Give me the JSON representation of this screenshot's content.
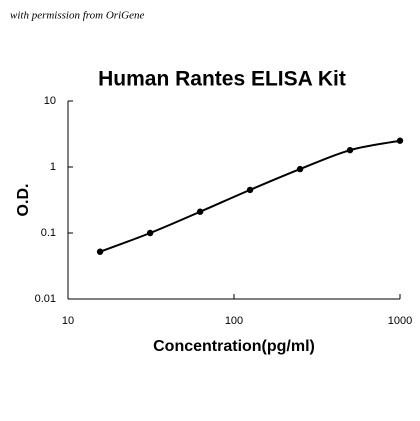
{
  "note_text": "with permission from OriGene",
  "chart_data": {
    "type": "scatter",
    "title": "Human Rantes ELISA Kit",
    "x_label": "Concentration(pg/ml)",
    "y_label": "O.D.",
    "x": [
      15.6,
      31.25,
      62.5,
      125,
      250,
      500,
      1000
    ],
    "series": [
      {
        "color": "#000000",
        "values": [
          0.052,
          0.1,
          0.21,
          0.45,
          0.93,
          1.8,
          2.5
        ]
      }
    ],
    "xlim": [
      10,
      1000
    ],
    "ylim": [
      0.01,
      10
    ],
    "xticks": [
      10,
      100,
      1000
    ],
    "yticks": [
      0.01,
      0.1,
      1,
      10
    ],
    "x_log": true,
    "y_log": true,
    "grid": false,
    "smooth_line": true
  }
}
